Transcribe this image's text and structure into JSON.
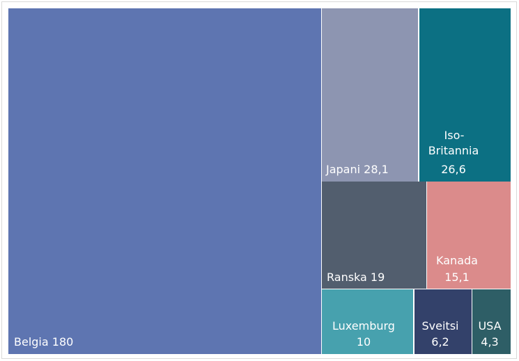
{
  "chart_data": {
    "type": "treemap",
    "items": [
      {
        "label": "Belgia",
        "value": 180,
        "value_text": "180",
        "color": "#5E75B1"
      },
      {
        "label": "Japani",
        "value": 28.1,
        "value_text": "28,1",
        "color": "#8D95B1"
      },
      {
        "label": "Iso-Britannia",
        "value": 26.6,
        "value_text": "26,6",
        "color": "#0C7083"
      },
      {
        "label": "Ranska",
        "value": 19,
        "value_text": "19",
        "color": "#525E6E"
      },
      {
        "label": "Kanada",
        "value": 15.1,
        "value_text": "15,1",
        "color": "#DB8B8B"
      },
      {
        "label": "Luxemburg",
        "value": 10,
        "value_text": "10",
        "color": "#47A1AE"
      },
      {
        "label": "Sveitsi",
        "value": 6.2,
        "value_text": "6,2",
        "color": "#33416A"
      },
      {
        "label": "USA",
        "value": 4.3,
        "value_text": "4,3",
        "color": "#2E5E66"
      }
    ]
  }
}
